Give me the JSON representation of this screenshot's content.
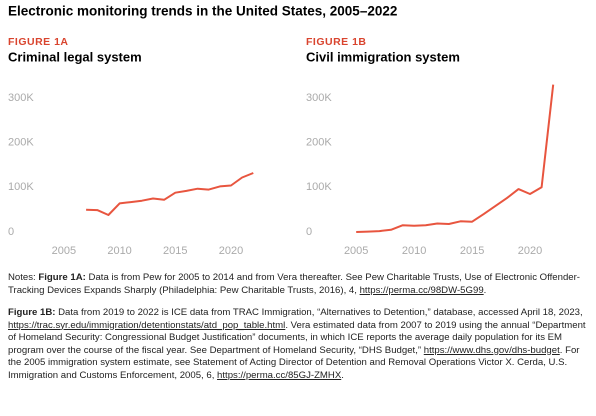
{
  "title": "Electronic monitoring trends in the United States, 2005–2022",
  "chart_data": [
    {
      "type": "line",
      "figure": "FIGURE 1A",
      "title": "Criminal legal system",
      "x": [
        2007,
        2008,
        2009,
        2010,
        2011,
        2012,
        2013,
        2014,
        2015,
        2016,
        2017,
        2018,
        2019,
        2020,
        2021,
        2022
      ],
      "series": [
        {
          "color": "#e8553f",
          "values": [
            50000,
            49000,
            38000,
            64000,
            67000,
            70000,
            75000,
            72000,
            88000,
            92000,
            97000,
            95000,
            102000,
            104000,
            122000,
            132000
          ]
        }
      ],
      "xlim": [
        2002.5,
        2023.5
      ],
      "xticks": [
        2005,
        2010,
        2015,
        2020
      ],
      "ylim": [
        0,
        330000
      ],
      "yticks": [
        0,
        {
          "value": 100000,
          "label": "100K"
        },
        {
          "value": 200000,
          "label": "200K"
        },
        {
          "value": 300000,
          "label": "300K"
        }
      ]
    },
    {
      "type": "line",
      "figure": "FIGURE 1B",
      "title": "Civil immigration system",
      "x": [
        2005,
        2006,
        2007,
        2008,
        2009,
        2010,
        2011,
        2012,
        2013,
        2014,
        2015,
        2016,
        2017,
        2018,
        2019,
        2020,
        2021,
        2022
      ],
      "series": [
        {
          "color": "#e8553f",
          "values": [
            0,
            1000,
            2000,
            5000,
            15000,
            14000,
            15000,
            19000,
            18000,
            24000,
            23000,
            40000,
            58000,
            76000,
            96000,
            85000,
            100000,
            330000
          ]
        }
      ],
      "xlim": [
        2003,
        2025
      ],
      "xticks": [
        2005,
        2010,
        2015,
        2020
      ],
      "ylim": [
        0,
        340000
      ],
      "yticks": [
        0,
        {
          "value": 100000,
          "label": "100K"
        },
        {
          "value": 200000,
          "label": "200K"
        },
        {
          "value": 300000,
          "label": "300K"
        }
      ]
    }
  ],
  "notes": [
    {
      "prefix": "Notes: ",
      "label": "Figure 1A:",
      "parts": [
        {
          "text": " Data is from Pew for 2005 to 2014 and from Vera thereafter. See Pew Charitable Trusts, Use of Electronic Offender-Tracking Devices Expands Sharply (Philadelphia: Pew Charitable Trusts, 2016), 4, "
        },
        {
          "url": "https://perma.cc/98DW-5G99"
        },
        {
          "text": "."
        }
      ]
    },
    {
      "label": "Figure 1B:",
      "parts": [
        {
          "text": " Data from 2019 to 2022 is ICE data from TRAC Immigration, “Alternatives to Detention,” database, accessed April 18, 2023, "
        },
        {
          "url": "https://trac.syr.edu/immigration/detentionstats/atd_pop_table.html"
        },
        {
          "text": ". Vera estimated data from 2007 to 2019 using the annual “Department of Homeland Security: Congressional Budget Justification” documents, in which ICE reports the average daily population for its EM program over the course of the fiscal year. See Department of Homeland Security, “DHS Budget,” "
        },
        {
          "url": "https://www.dhs.gov/dhs-budget"
        },
        {
          "text": ". For the 2005 immigration system estimate, see Statement of Acting Director of Detention and Removal Operations Victor X. Cerda, U.S. Immigration and Customs Enforcement, 2005, 6, "
        },
        {
          "url": "https://perma.cc/85GJ-ZMHX"
        },
        {
          "text": "."
        }
      ]
    }
  ]
}
